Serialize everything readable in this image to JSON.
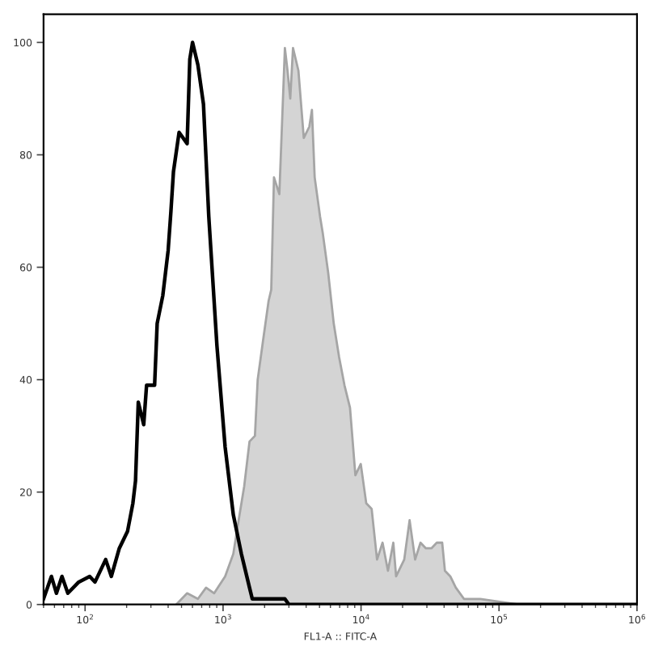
{
  "chart_data": {
    "type": "line",
    "xlabel": "FL1-A :: FITC-A",
    "log": "x",
    "xlim": [
      50,
      1000000
    ],
    "xticks": [
      {
        "value": 100,
        "label": "10$^{2}$"
      },
      {
        "value": 1000,
        "label": "10$^{3}$"
      },
      {
        "value": 10000,
        "label": "10$^{4}$"
      },
      {
        "value": 100000,
        "label": "10$^{5}$"
      },
      {
        "value": 1000000,
        "label": "10$^{6}$"
      }
    ],
    "ylim": [
      0,
      105
    ],
    "yticks": [
      0,
      20,
      40,
      60,
      80,
      100
    ],
    "grid": false,
    "marker": "none",
    "line_style": "solid",
    "series": [
      {
        "type": "area",
        "color": "#d4d4d4",
        "x": [
          458,
          549,
          657,
          753,
          862,
          1035,
          1186,
          1297,
          1422,
          1555,
          1702,
          1782,
          1950,
          2138,
          2234,
          2339,
          2558,
          2806,
          2931,
          3069,
          3213,
          3516,
          3846,
          4217,
          4406,
          4613,
          5047,
          5284,
          5781,
          6339,
          6935,
          7586,
          8318,
          9100,
          9954,
          10910,
          11940,
          13060,
          14320,
          15670,
          17140,
          17950,
          20560,
          22490,
          24660,
          26980,
          29510,
          32360,
          35400,
          38730,
          40550,
          44360,
          48640,
          55710,
          73110,
          137700,
          1000000
        ],
        "values": [
          0,
          2,
          1,
          3,
          2,
          5,
          9,
          15,
          21,
          29,
          30,
          40,
          47,
          54,
          56,
          76,
          73,
          99,
          95,
          90,
          99,
          95,
          83,
          85,
          88,
          76,
          69,
          66,
          59,
          50,
          44,
          39,
          35,
          23,
          25,
          18,
          17,
          8,
          11,
          6,
          11,
          5,
          8,
          15,
          8,
          11,
          10,
          10,
          11,
          11,
          6,
          5,
          3,
          1,
          1,
          0,
          0
        ]
      },
      {
        "color": "#000000",
        "x": [
          50,
          57,
          62,
          68,
          75,
          90,
          108,
          118,
          141,
          155,
          177,
          203,
          222,
          232,
          243,
          266,
          279,
          319,
          333,
          366,
          400,
          419,
          437,
          480,
          549,
          574,
          601,
          657,
          721,
          788,
          903,
          1035,
          1186,
          1358,
          1555,
          1628,
          2806,
          3000,
          1000000
        ],
        "values": [
          1,
          5,
          2,
          5,
          2,
          4,
          5,
          4,
          8,
          5,
          10,
          13,
          18,
          22,
          36,
          32,
          39,
          39,
          50,
          55,
          63,
          70,
          77,
          84,
          82,
          97,
          100,
          96,
          89,
          69,
          46,
          28,
          16,
          9,
          3,
          1,
          1,
          0,
          0
        ]
      }
    ]
  }
}
